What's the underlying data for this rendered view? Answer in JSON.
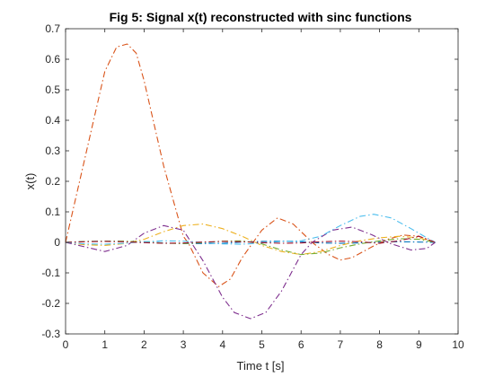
{
  "chart_data": {
    "type": "line",
    "title": "Fig 5: Signal x(t) reconstructed with sinc functions",
    "xlabel": "Time t [s]",
    "ylabel": "x(t)",
    "xlim": [
      0,
      10
    ],
    "ylim": [
      -0.3,
      0.7
    ],
    "xticks": [
      0,
      1,
      2,
      3,
      4,
      5,
      6,
      7,
      8,
      9,
      10
    ],
    "yticks": [
      -0.3,
      -0.2,
      -0.1,
      0,
      0.1,
      0.2,
      0.3,
      0.4,
      0.5,
      0.6,
      0.7
    ],
    "xtick_labels": [
      "0",
      "1",
      "2",
      "3",
      "4",
      "5",
      "6",
      "7",
      "8",
      "9",
      "10"
    ],
    "ytick_labels": [
      "-0.3",
      "-0.2",
      "-0.1",
      "0",
      "0.1",
      "0.2",
      "0.3",
      "0.4",
      "0.5",
      "0.6",
      "0.7"
    ],
    "grid": false,
    "line_style": "dash-dot",
    "series": [
      {
        "color": "#0072BD",
        "x": [
          0,
          0.5,
          1,
          1.5,
          2,
          2.5,
          3,
          3.5,
          4,
          4.5,
          5,
          5.5,
          6,
          6.5,
          7,
          7.5,
          8,
          8.5,
          9,
          9.42
        ],
        "values": [
          0,
          0.003,
          0.004,
          0.003,
          0.002,
          -0.002,
          -0.004,
          -0.004,
          -0.003,
          0.001,
          0.003,
          0.004,
          0.002,
          -0.002,
          -0.003,
          -0.002,
          0.001,
          0.002,
          0.001,
          0
        ]
      },
      {
        "color": "#D95319",
        "x": [
          0,
          0.5,
          1,
          1.3,
          1.57,
          1.8,
          2,
          2.5,
          3,
          3.14,
          3.5,
          3.9,
          4.2,
          4.5,
          5,
          5.4,
          5.8,
          6.28,
          6.7,
          7,
          7.3,
          7.8,
          8.2,
          8.6,
          9,
          9.42
        ],
        "values": [
          0,
          0.28,
          0.56,
          0.64,
          0.65,
          0.62,
          0.53,
          0.25,
          0.02,
          -0.005,
          -0.1,
          -0.145,
          -0.12,
          -0.05,
          0.04,
          0.08,
          0.06,
          0,
          -0.04,
          -0.058,
          -0.05,
          -0.015,
          0.01,
          0.024,
          0.02,
          0
        ]
      },
      {
        "color": "#EDB120",
        "x": [
          0,
          0.5,
          1,
          1.5,
          2,
          2.5,
          3,
          3.5,
          4,
          4.5,
          5,
          5.5,
          6,
          6.5,
          7,
          7.5,
          8,
          8.5,
          9,
          9.42
        ],
        "values": [
          0,
          -0.008,
          -0.01,
          -0.004,
          0.01,
          0.035,
          0.055,
          0.06,
          0.045,
          0.02,
          -0.01,
          -0.03,
          -0.04,
          -0.03,
          -0.01,
          0.005,
          0.015,
          0.02,
          0.015,
          0
        ]
      },
      {
        "color": "#7E2F8E",
        "x": [
          0,
          0.5,
          1,
          1.57,
          2,
          2.5,
          3,
          3.5,
          4,
          4.3,
          4.71,
          5.1,
          5.5,
          6,
          6.28,
          6.8,
          7.3,
          7.8,
          8.3,
          8.8,
          9.2,
          9.42
        ],
        "values": [
          0,
          -0.015,
          -0.03,
          -0.01,
          0.03,
          0.055,
          0.04,
          -0.06,
          -0.18,
          -0.23,
          -0.25,
          -0.23,
          -0.16,
          -0.04,
          0,
          0.04,
          0.05,
          0.025,
          -0.005,
          -0.025,
          -0.02,
          0
        ]
      },
      {
        "color": "#77AC30",
        "x": [
          0,
          0.5,
          1,
          1.5,
          2,
          2.5,
          3,
          3.5,
          4,
          4.5,
          5,
          5.5,
          6,
          6.5,
          7,
          7.5,
          8,
          8.5,
          9,
          9.42
        ],
        "values": [
          0,
          0.003,
          0.004,
          0.004,
          0.001,
          -0.003,
          -0.004,
          -0.001,
          0.004,
          0.005,
          -0.005,
          -0.025,
          -0.04,
          -0.035,
          -0.018,
          -0.005,
          0.005,
          0.012,
          0.01,
          0
        ]
      },
      {
        "color": "#4DBEEE",
        "x": [
          0,
          0.5,
          1,
          1.5,
          2,
          2.5,
          3,
          3.5,
          4,
          4.5,
          5,
          5.5,
          6,
          6.5,
          7,
          7.5,
          7.85,
          8.3,
          8.8,
          9.2,
          9.42
        ],
        "values": [
          0,
          -0.005,
          -0.006,
          -0.003,
          0.002,
          0.005,
          0.004,
          0,
          -0.005,
          -0.006,
          -0.002,
          0.003,
          0.005,
          0.02,
          0.055,
          0.085,
          0.092,
          0.08,
          0.045,
          0.015,
          0
        ]
      },
      {
        "color": "#A2142F",
        "x": [
          0,
          0.5,
          1,
          1.5,
          2,
          2.5,
          3,
          3.5,
          4,
          4.5,
          5,
          5.5,
          6,
          6.5,
          7,
          7.5,
          8,
          8.5,
          9,
          9.42
        ],
        "values": [
          0,
          0.002,
          0.003,
          0.002,
          -0.001,
          -0.003,
          -0.002,
          0.001,
          0.003,
          0.002,
          -0.001,
          -0.003,
          -0.002,
          0.002,
          0.004,
          0.002,
          -0.003,
          0.005,
          0.02,
          0
        ]
      }
    ]
  }
}
